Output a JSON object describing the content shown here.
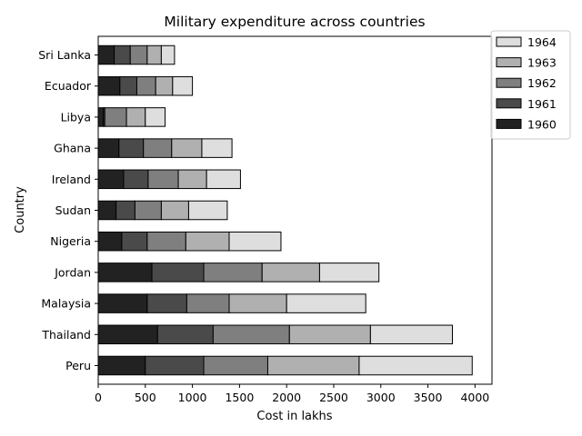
{
  "chart_data": {
    "type": "bar",
    "orientation": "horizontal",
    "stacked": true,
    "title": "Military expenditure across countries",
    "xlabel": "Cost in lakhs",
    "ylabel": "Country",
    "xlim": [
      0,
      4180
    ],
    "xticks": [
      0,
      500,
      1000,
      1500,
      2000,
      2500,
      3000,
      3500,
      4000
    ],
    "grid": false,
    "legend_position": "top-right outside",
    "categories": [
      "Peru",
      "Thailand",
      "Malaysia",
      "Jordan",
      "Nigeria",
      "Sudan",
      "Ireland",
      "Ghana",
      "Libya",
      "Ecuador",
      "Sri Lanka"
    ],
    "series": [
      {
        "name": "1960",
        "color": "#222222",
        "values": [
          500,
          630,
          520,
          570,
          250,
          190,
          270,
          220,
          55,
          230,
          170
        ]
      },
      {
        "name": "1961",
        "color": "#4a4a4a",
        "values": [
          620,
          590,
          420,
          550,
          270,
          200,
          260,
          260,
          15,
          180,
          170
        ]
      },
      {
        "name": "1962",
        "color": "#7f7f7f",
        "values": [
          680,
          810,
          450,
          620,
          410,
          280,
          320,
          300,
          230,
          200,
          180
        ]
      },
      {
        "name": "1963",
        "color": "#b0b0b0",
        "values": [
          970,
          860,
          610,
          610,
          460,
          290,
          300,
          320,
          200,
          180,
          150
        ]
      },
      {
        "name": "1964",
        "color": "#dedede",
        "values": [
          1200,
          870,
          840,
          630,
          550,
          410,
          360,
          320,
          210,
          210,
          140
        ]
      }
    ]
  }
}
